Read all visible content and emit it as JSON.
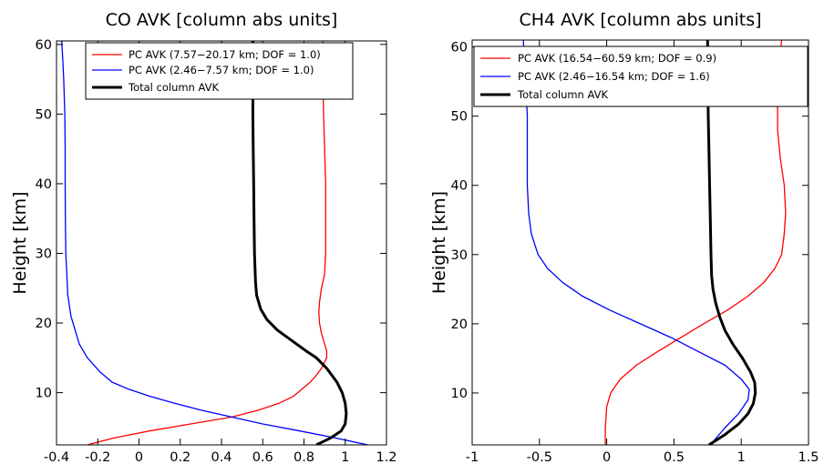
{
  "chart_data": [
    {
      "type": "line",
      "title": "CO AVK [column abs units]",
      "xlabel": "",
      "ylabel": "Height [km]",
      "xlim": [
        -0.4,
        1.2
      ],
      "ylim": [
        2.5,
        60.5
      ],
      "x_ticks": [
        "-0.4",
        "-0.2",
        "0",
        "0.2",
        "0.4",
        "0.6",
        "0.8",
        "1",
        "1.2"
      ],
      "x_tick_values": [
        -0.4,
        -0.2,
        0,
        0.2,
        0.4,
        0.6,
        0.8,
        1.0,
        1.2
      ],
      "y_ticks": [
        "10",
        "20",
        "30",
        "40",
        "50",
        "60"
      ],
      "y_tick_values": [
        10,
        20,
        30,
        40,
        50,
        60
      ],
      "grid": false,
      "legend_position": "top",
      "series": [
        {
          "name": "PC AVK (7.57−20.17 km; DOF = 1.0)",
          "color": "#ff0000",
          "width": 1.3,
          "points": [
            [
              -0.25,
              2.5
            ],
            [
              -0.12,
              3.5
            ],
            [
              0.05,
              4.5
            ],
            [
              0.25,
              5.5
            ],
            [
              0.45,
              6.5
            ],
            [
              0.58,
              7.5
            ],
            [
              0.68,
              8.5
            ],
            [
              0.75,
              9.5
            ],
            [
              0.79,
              10.5
            ],
            [
              0.83,
              11.5
            ],
            [
              0.86,
              12.5
            ],
            [
              0.885,
              13.5
            ],
            [
              0.91,
              15
            ],
            [
              0.91,
              16
            ],
            [
              0.9,
              17
            ],
            [
              0.885,
              18.5
            ],
            [
              0.875,
              20
            ],
            [
              0.872,
              21.5
            ],
            [
              0.875,
              23
            ],
            [
              0.885,
              25
            ],
            [
              0.9,
              27
            ],
            [
              0.905,
              30
            ],
            [
              0.905,
              35
            ],
            [
              0.905,
              40
            ],
            [
              0.9,
              45
            ],
            [
              0.895,
              50
            ],
            [
              0.892,
              55
            ],
            [
              0.892,
              60.5
            ]
          ]
        },
        {
          "name": "PC AVK (2.46−7.57 km; DOF = 1.0)",
          "color": "#0000ff",
          "width": 1.3,
          "points": [
            [
              1.11,
              2.5
            ],
            [
              0.95,
              3.5
            ],
            [
              0.78,
              4.5
            ],
            [
              0.6,
              5.5
            ],
            [
              0.45,
              6.5
            ],
            [
              0.3,
              7.5
            ],
            [
              0.17,
              8.5
            ],
            [
              0.05,
              9.5
            ],
            [
              -0.05,
              10.5
            ],
            [
              -0.13,
              11.5
            ],
            [
              -0.19,
              13
            ],
            [
              -0.25,
              15
            ],
            [
              -0.29,
              17
            ],
            [
              -0.31,
              19
            ],
            [
              -0.33,
              21
            ],
            [
              -0.345,
              24
            ],
            [
              -0.35,
              27
            ],
            [
              -0.355,
              30
            ],
            [
              -0.357,
              35
            ],
            [
              -0.358,
              40
            ],
            [
              -0.358,
              45
            ],
            [
              -0.36,
              50
            ],
            [
              -0.365,
              55
            ],
            [
              -0.37,
              58
            ],
            [
              -0.375,
              60.5
            ]
          ]
        },
        {
          "name": "Total column AVK",
          "color": "#000000",
          "width": 3,
          "points": [
            [
              0.86,
              2.5
            ],
            [
              0.93,
              3.5
            ],
            [
              0.98,
              4.5
            ],
            [
              1.0,
              5.5
            ],
            [
              1.005,
              7
            ],
            [
              1.0,
              8.5
            ],
            [
              0.985,
              10
            ],
            [
              0.96,
              11.5
            ],
            [
              0.91,
              13.5
            ],
            [
              0.86,
              15
            ],
            [
              0.81,
              16
            ],
            [
              0.74,
              17.5
            ],
            [
              0.67,
              19
            ],
            [
              0.62,
              20.5
            ],
            [
              0.59,
              22
            ],
            [
              0.57,
              24
            ],
            [
              0.565,
              26
            ],
            [
              0.56,
              30
            ],
            [
              0.558,
              35
            ],
            [
              0.556,
              40
            ],
            [
              0.554,
              45
            ],
            [
              0.552,
              50
            ],
            [
              0.552,
              55
            ],
            [
              0.552,
              60.5
            ]
          ]
        }
      ]
    },
    {
      "type": "line",
      "title": "CH4 AVK [column abs units]",
      "xlabel": "",
      "ylabel": "Height [km]",
      "xlim": [
        -1.0,
        1.5
      ],
      "ylim": [
        2.5,
        61
      ],
      "x_ticks": [
        "-1",
        "-0.5",
        "0",
        "0.5",
        "1",
        "1.5"
      ],
      "x_tick_values": [
        -1.0,
        -0.5,
        0,
        0.5,
        1.0,
        1.5
      ],
      "y_ticks": [
        "10",
        "20",
        "30",
        "40",
        "50",
        "60"
      ],
      "y_tick_values": [
        10,
        20,
        30,
        40,
        50,
        60
      ],
      "grid": false,
      "legend_position": "top",
      "series": [
        {
          "name": "PC AVK (16.54−60.59 km; DOF = 0.9)",
          "color": "#ff0000",
          "width": 1.3,
          "points": [
            [
              -0.01,
              2.5
            ],
            [
              -0.01,
              5
            ],
            [
              0.0,
              8
            ],
            [
              0.03,
              10
            ],
            [
              0.1,
              12
            ],
            [
              0.22,
              14
            ],
            [
              0.38,
              16
            ],
            [
              0.55,
              18
            ],
            [
              0.72,
              20
            ],
            [
              0.9,
              22
            ],
            [
              1.05,
              24
            ],
            [
              1.17,
              26
            ],
            [
              1.25,
              28
            ],
            [
              1.3,
              30
            ],
            [
              1.32,
              33
            ],
            [
              1.33,
              36
            ],
            [
              1.32,
              40
            ],
            [
              1.29,
              44
            ],
            [
              1.27,
              48
            ],
            [
              1.27,
              52
            ],
            [
              1.28,
              56
            ],
            [
              1.29,
              59
            ],
            [
              1.3,
              61
            ]
          ]
        },
        {
          "name": "PC AVK (2.46−16.54 km; DOF = 1.6)",
          "color": "#0000ff",
          "width": 1.3,
          "points": [
            [
              0.77,
              2.5
            ],
            [
              0.88,
              5
            ],
            [
              0.98,
              7
            ],
            [
              1.05,
              9
            ],
            [
              1.06,
              10.5
            ],
            [
              1.0,
              12
            ],
            [
              0.88,
              14
            ],
            [
              0.68,
              16
            ],
            [
              0.48,
              18
            ],
            [
              0.25,
              20
            ],
            [
              0.02,
              22
            ],
            [
              -0.18,
              24
            ],
            [
              -0.33,
              26
            ],
            [
              -0.44,
              28
            ],
            [
              -0.51,
              30
            ],
            [
              -0.56,
              33
            ],
            [
              -0.58,
              36
            ],
            [
              -0.59,
              40
            ],
            [
              -0.59,
              45
            ],
            [
              -0.59,
              50
            ],
            [
              -0.6,
              54
            ],
            [
              -0.61,
              58
            ],
            [
              -0.62,
              61
            ]
          ]
        },
        {
          "name": "Total column AVK",
          "color": "#000000",
          "width": 3,
          "points": [
            [
              0.76,
              2.5
            ],
            [
              0.88,
              4
            ],
            [
              0.98,
              5.5
            ],
            [
              1.05,
              7
            ],
            [
              1.09,
              8.5
            ],
            [
              1.105,
              10
            ],
            [
              1.1,
              11.5
            ],
            [
              1.07,
              13
            ],
            [
              1.01,
              15
            ],
            [
              0.94,
              17
            ],
            [
              0.88,
              19
            ],
            [
              0.84,
              21
            ],
            [
              0.81,
              23
            ],
            [
              0.79,
              25
            ],
            [
              0.78,
              27
            ],
            [
              0.775,
              30
            ],
            [
              0.77,
              35
            ],
            [
              0.765,
              40
            ],
            [
              0.76,
              45
            ],
            [
              0.755,
              50
            ],
            [
              0.752,
              55
            ],
            [
              0.75,
              61
            ]
          ]
        }
      ]
    }
  ]
}
